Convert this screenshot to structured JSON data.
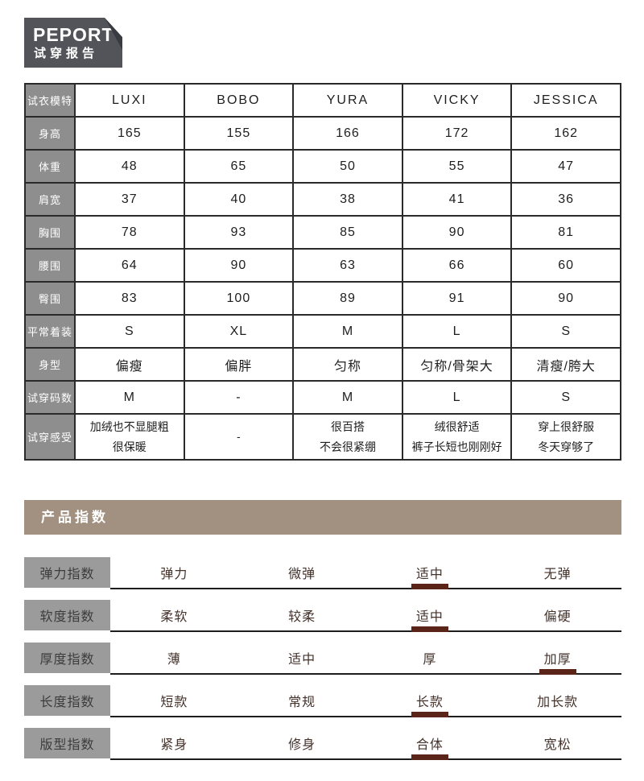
{
  "logo": {
    "brand": "PEPORT",
    "subtitle": "试穿报告"
  },
  "fit_table": {
    "corner_label": "试衣模特",
    "models": [
      "LUXI",
      "BOBO",
      "YURA",
      "VICKY",
      "JESSICA"
    ],
    "rows": [
      {
        "label": "身高",
        "values": [
          "165",
          "155",
          "166",
          "172",
          "162"
        ]
      },
      {
        "label": "体重",
        "values": [
          "48",
          "65",
          "50",
          "55",
          "47"
        ]
      },
      {
        "label": "肩宽",
        "values": [
          "37",
          "40",
          "38",
          "41",
          "36"
        ]
      },
      {
        "label": "胸围",
        "values": [
          "78",
          "93",
          "85",
          "90",
          "81"
        ]
      },
      {
        "label": "腰围",
        "values": [
          "64",
          "90",
          "63",
          "66",
          "60"
        ]
      },
      {
        "label": "臀围",
        "values": [
          "83",
          "100",
          "89",
          "91",
          "90"
        ]
      },
      {
        "label": "平常着装",
        "values": [
          "S",
          "XL",
          "M",
          "L",
          "S"
        ]
      },
      {
        "label": "身型",
        "values": [
          "偏瘦",
          "偏胖",
          "匀称",
          "匀称/骨架大",
          "清瘦/胯大"
        ]
      },
      {
        "label": "试穿码数",
        "values": [
          "M",
          "-",
          "M",
          "L",
          "S"
        ]
      },
      {
        "label": "试穿感受",
        "multiline": true,
        "values": [
          "加绒也不显腿粗\n很保暖",
          "-",
          "很百搭\n不会很紧绷",
          "绒很舒适\n裤子长短也刚刚好",
          "穿上很舒服\n冬天穿够了"
        ]
      }
    ]
  },
  "index_section": {
    "title": "产品指数",
    "rows": [
      {
        "label": "弹力指数",
        "options": [
          "弹力",
          "微弹",
          "适中",
          "无弹"
        ],
        "selected": 2
      },
      {
        "label": "软度指数",
        "options": [
          "柔软",
          "较柔",
          "适中",
          "偏硬"
        ],
        "selected": 2
      },
      {
        "label": "厚度指数",
        "options": [
          "薄",
          "适中",
          "厚",
          "加厚"
        ],
        "selected": 3
      },
      {
        "label": "长度指数",
        "options": [
          "短款",
          "常规",
          "长款",
          "加长款"
        ],
        "selected": 2
      },
      {
        "label": "版型指数",
        "options": [
          "紧身",
          "修身",
          "合体",
          "宽松"
        ],
        "selected": 2
      }
    ]
  },
  "colors": {
    "logo_bg": "#53545a",
    "logo_fold": "#3a3b41",
    "table_border": "#2a2a2a",
    "table_rowhead_bg": "#8e8e8e",
    "banner_bg": "#a29181",
    "index_label_bg": "#9b9b9b",
    "index_option_text": "#44322b",
    "selected_marker": "#5a2418"
  }
}
